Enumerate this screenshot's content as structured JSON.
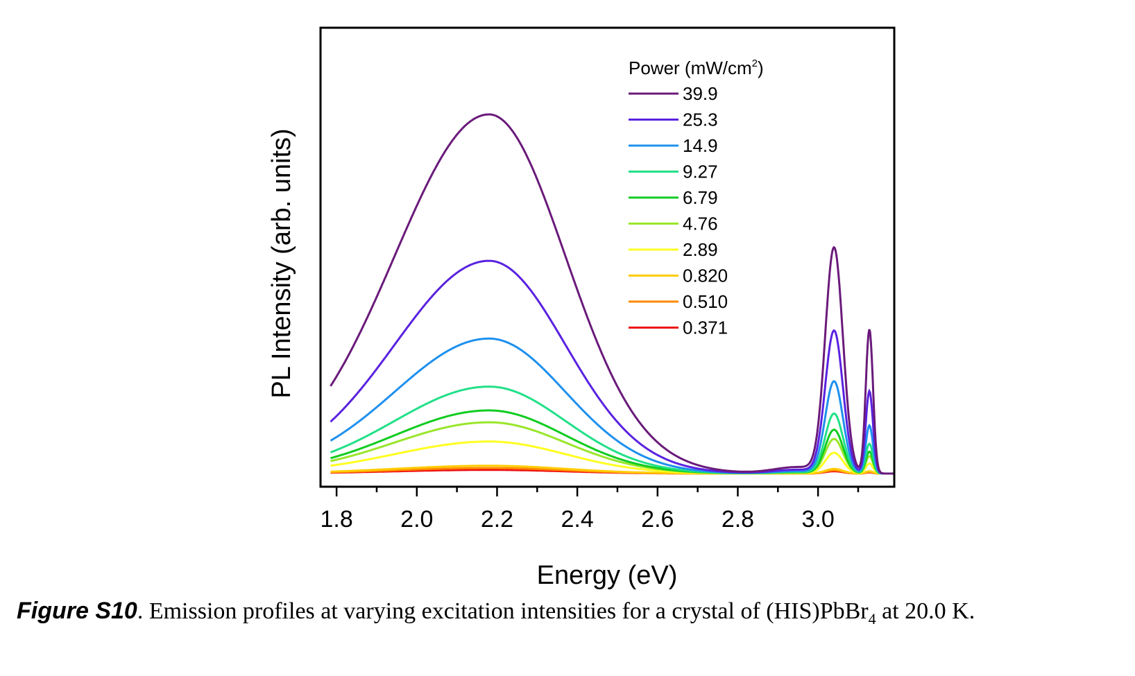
{
  "chart_data": {
    "type": "line",
    "xlabel": "Energy (eV)",
    "ylabel": "PL Intensity (arb. units)",
    "xlim": [
      1.76,
      3.19
    ],
    "ylim": [
      0,
      100
    ],
    "xticks": [
      "1.8",
      "2.0",
      "2.2",
      "2.4",
      "2.6",
      "2.8",
      "3.0"
    ],
    "legend": {
      "title": "Power (mW/cm",
      "title_sup": "2",
      "title_end": ")",
      "placement": "top-right"
    },
    "series": [
      {
        "name": "39.9",
        "color": "#6a1a7a",
        "broad": 78.5,
        "peak1": 49.0,
        "peak2": 31.5
      },
      {
        "name": "25.3",
        "color": "#5a22e0",
        "broad": 46.5,
        "peak1": 31.0,
        "peak2": 18.0
      },
      {
        "name": "14.9",
        "color": "#1e90ee",
        "broad": 29.5,
        "peak1": 20.0,
        "peak2": 10.5
      },
      {
        "name": "9.27",
        "color": "#22e088",
        "broad": 19.0,
        "peak1": 13.0,
        "peak2": 6.5
      },
      {
        "name": "6.79",
        "color": "#10cc20",
        "broad": 13.8,
        "peak1": 9.5,
        "peak2": 4.8
      },
      {
        "name": "4.76",
        "color": "#99e62a",
        "broad": 11.2,
        "peak1": 7.5,
        "peak2": 3.8
      },
      {
        "name": "2.89",
        "color": "#ffff22",
        "broad": 7.0,
        "peak1": 4.5,
        "peak2": 2.2
      },
      {
        "name": "0.820",
        "color": "#ffcc00",
        "broad": 1.7,
        "peak1": 1.0,
        "peak2": 0.5
      },
      {
        "name": "0.510",
        "color": "#ff8800",
        "broad": 1.2,
        "peak1": 0.7,
        "peak2": 0.35
      },
      {
        "name": "0.371",
        "color": "#ee1111",
        "broad": 0.8,
        "peak1": 0.5,
        "peak2": 0.25
      }
    ]
  },
  "caption": {
    "label": "Figure S10",
    "text_before": ". Emission profiles at varying excitation intensities for a crystal of (HIS)PbBr",
    "subscript": "4",
    "text_after": " at 20.0 K."
  }
}
